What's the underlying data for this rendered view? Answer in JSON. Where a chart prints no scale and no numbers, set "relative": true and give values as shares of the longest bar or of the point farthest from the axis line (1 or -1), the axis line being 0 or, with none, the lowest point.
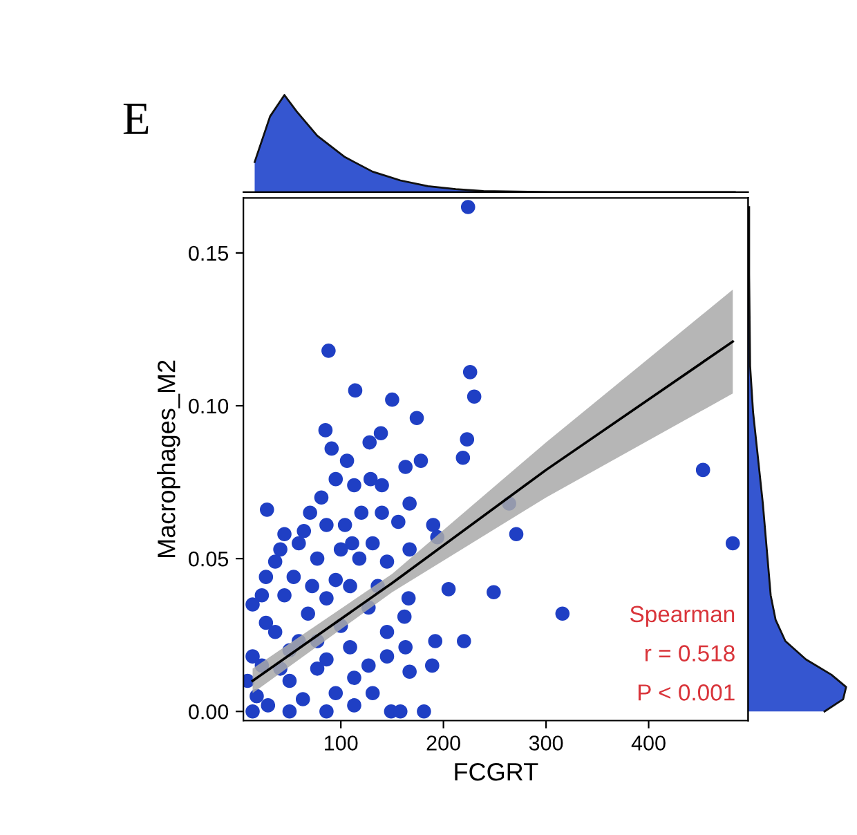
{
  "chart_data": [
    {
      "type": "scatter",
      "xlabel": "FCGRT",
      "ylabel": "Macrophages_M2",
      "xlim": [
        5,
        497
      ],
      "ylim": [
        -0.003,
        0.168
      ],
      "xticks": [
        100,
        200,
        300,
        400
      ],
      "yticks": [
        {
          "value": 0,
          "label": "0.00"
        },
        {
          "value": 0.05,
          "label": "0.05"
        },
        {
          "value": 0.1,
          "label": "0.10"
        },
        {
          "value": 0.15,
          "label": "0.15"
        }
      ],
      "grid": false,
      "annotations": [
        "Spearman",
        "r = 0.518",
        "P < 0.001"
      ],
      "series": [
        {
          "type": "scatter",
          "marker": "circle",
          "color": "#1f3fc4",
          "x": [
            224,
            88,
            226,
            230,
            114,
            150,
            174,
            85,
            139,
            128,
            223,
            219,
            91,
            106,
            178,
            163,
            453,
            95,
            113,
            129,
            140,
            28,
            81,
            70,
            120,
            140,
            167,
            264,
            271,
            482,
            190,
            194,
            156,
            104,
            86,
            59,
            41,
            167,
            131,
            111,
            145,
            77,
            36,
            95,
            54,
            23,
            205,
            249,
            166,
            316,
            127,
            162,
            68,
            27,
            100,
            192,
            220,
            163,
            145,
            189,
            167,
            127,
            14,
            50,
            86,
            113,
            149,
            181,
            158,
            18,
            29,
            50,
            63,
            77,
            95,
            113,
            131,
            41,
            23,
            59,
            36,
            77,
            109,
            14,
            50,
            86,
            14,
            45,
            86,
            109,
            64,
            45,
            118,
            100,
            27,
            72,
            136,
            145,
            9
          ],
          "values": [
            0.165,
            0.118,
            0.111,
            0.103,
            0.105,
            0.102,
            0.096,
            0.092,
            0.091,
            0.088,
            0.089,
            0.083,
            0.086,
            0.082,
            0.082,
            0.08,
            0.079,
            0.076,
            0.074,
            0.076,
            0.074,
            0.066,
            0.07,
            0.065,
            0.065,
            0.065,
            0.068,
            0.068,
            0.058,
            0.055,
            0.061,
            0.057,
            0.062,
            0.061,
            0.061,
            0.055,
            0.053,
            0.053,
            0.055,
            0.055,
            0.049,
            0.05,
            0.049,
            0.043,
            0.044,
            0.038,
            0.04,
            0.039,
            0.037,
            0.032,
            0.034,
            0.031,
            0.032,
            0.029,
            0.028,
            0.023,
            0.023,
            0.021,
            0.018,
            0.015,
            0.013,
            0.015,
            0.018,
            0.02,
            0.017,
            0.011,
            0.0,
            0.0,
            0.0,
            0.005,
            0.002,
            0.01,
            0.004,
            0.014,
            0.006,
            0.002,
            0.006,
            0.014,
            0.015,
            0.023,
            0.026,
            0.023,
            0.021,
            0.0,
            0.0,
            0.0,
            0.035,
            0.038,
            0.037,
            0.041,
            0.059,
            0.058,
            0.05,
            0.053,
            0.044,
            0.041,
            0.041,
            0.026,
            0.01
          ]
        },
        {
          "type": "line",
          "color": "#000000",
          "x": [
            14,
            150,
            300,
            482
          ],
          "values": [
            0.01,
            0.042,
            0.079,
            0.121
          ],
          "lower": [
            0.006,
            0.039,
            0.07,
            0.104
          ],
          "upper": [
            0.014,
            0.045,
            0.088,
            0.138
          ]
        }
      ]
    },
    {
      "type": "area",
      "title": "E",
      "relative": true,
      "xlim": [
        5,
        497
      ],
      "tick_labels": false,
      "series": [
        {
          "color": "#3556d0",
          "x": [
            16,
            31,
            45,
            57,
            77,
            104,
            131,
            158,
            185,
            212,
            239,
            307,
            400,
            484
          ],
          "values": [
            0.31,
            0.78,
            1.0,
            0.83,
            0.58,
            0.36,
            0.21,
            0.12,
            0.06,
            0.03,
            0.01,
            0.0,
            0.0,
            0.0
          ]
        }
      ]
    },
    {
      "type": "area",
      "relative": true,
      "orientation": "horizontal",
      "ylim": [
        -0.003,
        0.168
      ],
      "tick_labels": false,
      "series": [
        {
          "color": "#3556d0",
          "x": [
            0.0,
            0.004,
            0.008,
            0.012,
            0.017,
            0.023,
            0.03,
            0.038,
            0.053,
            0.068,
            0.083,
            0.098,
            0.113,
            0.143,
            0.165
          ],
          "values": [
            0.78,
            0.97,
            1.0,
            0.85,
            0.59,
            0.38,
            0.28,
            0.23,
            0.19,
            0.15,
            0.1,
            0.05,
            0.02,
            0.01,
            0.01
          ]
        }
      ]
    }
  ]
}
